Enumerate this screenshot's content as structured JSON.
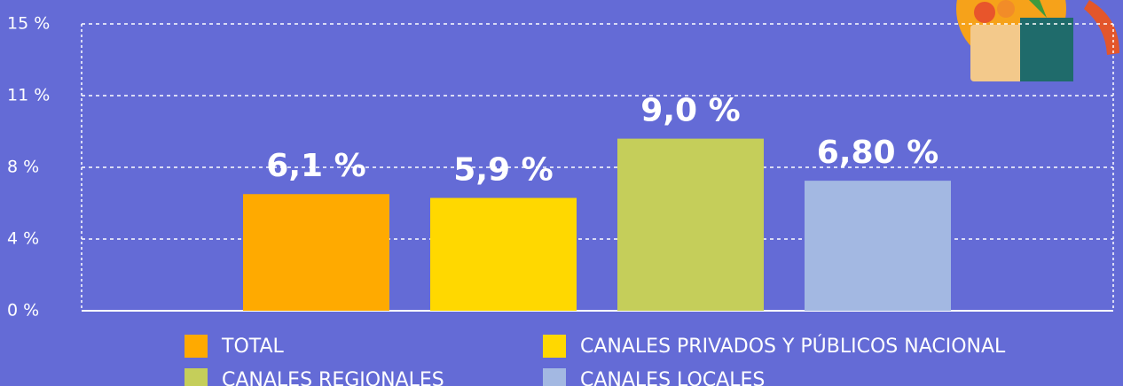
{
  "chart_data": {
    "type": "bar",
    "series": [
      {
        "name": "TOTAL",
        "color": "#FFAA00",
        "values": [
          6.1
        ],
        "value_labels": [
          "6,1 %"
        ]
      },
      {
        "name": "CANALES PRIVADOS Y PÚBLICOS NACIONAL",
        "color": "#FFD800",
        "values": [
          5.9
        ],
        "value_labels": [
          "5,9 %"
        ]
      },
      {
        "name": "CANALES REGIONALES",
        "color": "#C5CE5A",
        "values": [
          9.0
        ],
        "value_labels": [
          "9,0 %"
        ]
      },
      {
        "name": "CANALES LOCALES",
        "color": "#A3B8E2",
        "values": [
          6.8
        ],
        "value_labels": [
          "6,80 %"
        ]
      }
    ],
    "ylim": [
      0,
      15
    ],
    "yticks": [
      {
        "value": 0,
        "label": "0 %"
      },
      {
        "value": 3.75,
        "label": "4 %"
      },
      {
        "value": 7.5,
        "label": "8 %"
      },
      {
        "value": 11.25,
        "label": "11 %"
      },
      {
        "value": 15,
        "label": "15 %"
      }
    ],
    "grid": true
  }
}
